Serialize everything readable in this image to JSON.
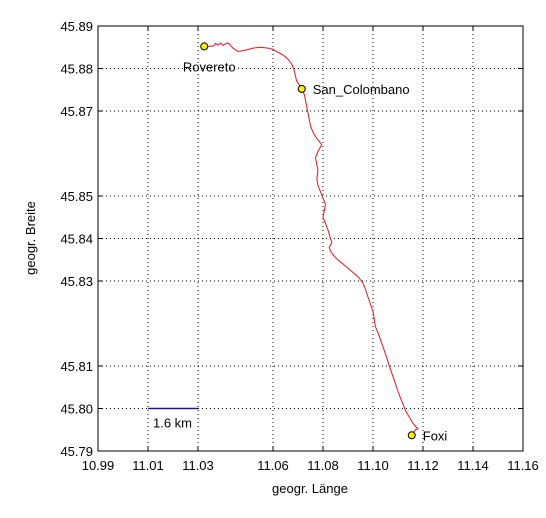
{
  "chart_data": {
    "type": "line",
    "xlabel": "geogr. Länge",
    "ylabel": "geogr. Breite",
    "xlim": [
      10.99,
      11.16
    ],
    "ylim": [
      45.79,
      45.89
    ],
    "grid": true,
    "x_ticks": [
      10.99,
      11.01,
      11.03,
      11.06,
      11.08,
      11.1,
      11.12,
      11.14,
      11.16
    ],
    "x_tick_labels": [
      "10.99",
      "11.01",
      "11.03",
      "11.06",
      "11.08",
      "11.10",
      "11.12",
      "11.14",
      "11.16"
    ],
    "y_ticks": [
      45.89,
      45.88,
      45.87,
      45.85,
      45.84,
      45.83,
      45.81,
      45.8,
      45.79
    ],
    "y_tick_labels": [
      "45.89",
      "45.88",
      "45.87",
      "45.85",
      "45.84",
      "45.83",
      "45.81",
      "45.80",
      "45.79"
    ],
    "colors": {
      "route": "#e8141e",
      "marker_fill": "#ffee00",
      "scale_bar": "#1a1a8c",
      "grid": "#000000"
    },
    "scale_bar": {
      "label": "1.6 km",
      "x_start": 11.01,
      "x_end": 11.03,
      "y": 45.8
    },
    "places": [
      {
        "name": "Rovereto",
        "x": 11.0325,
        "y": 45.8852,
        "label_pos": "below"
      },
      {
        "name": "San_Colombano",
        "x": 11.0715,
        "y": 45.8752,
        "label_pos": "right"
      },
      {
        "name": "Foxi",
        "x": 11.1155,
        "y": 45.7937,
        "label_pos": "right"
      }
    ],
    "series": [
      {
        "x": [
          11.0325,
          11.0345,
          11.0362,
          11.037,
          11.038,
          11.0392,
          11.04,
          11.041,
          11.042,
          11.044,
          11.046,
          11.049,
          11.052,
          11.055,
          11.058,
          11.06,
          11.062,
          11.064,
          11.066,
          11.0675,
          11.0685,
          11.069,
          11.0695,
          11.0705,
          11.0715,
          11.0725,
          11.073,
          11.0735,
          11.074,
          11.0745,
          11.075,
          11.076,
          11.077,
          11.078,
          11.079,
          11.0795,
          11.078,
          11.077,
          11.0775,
          11.078,
          11.0775,
          11.078,
          11.079,
          11.08,
          11.081,
          11.0805,
          11.08,
          11.081,
          11.082,
          11.083,
          11.0835,
          11.0825,
          11.083,
          11.085,
          11.088,
          11.091,
          11.094,
          11.096,
          11.097,
          11.098,
          11.099,
          11.1,
          11.1005,
          11.101,
          11.102,
          11.103,
          11.104,
          11.105,
          11.106,
          11.107,
          11.108,
          11.109,
          11.11,
          11.111,
          11.112,
          11.113,
          11.1145,
          11.116,
          11.1175,
          11.118,
          11.117,
          11.1155
        ],
        "y": [
          45.8852,
          45.8852,
          45.8853,
          45.8859,
          45.8855,
          45.886,
          45.8854,
          45.8858,
          45.886,
          45.8848,
          45.884,
          45.8843,
          45.8848,
          45.885,
          45.8848,
          45.8845,
          45.8838,
          45.8832,
          45.8822,
          45.881,
          45.8795,
          45.8782,
          45.877,
          45.8762,
          45.8752,
          45.874,
          45.8725,
          45.871,
          45.8695,
          45.868,
          45.8665,
          45.865,
          45.864,
          45.8632,
          45.8625,
          45.862,
          45.8605,
          45.859,
          45.8575,
          45.856,
          45.854,
          45.8525,
          45.851,
          45.8495,
          45.848,
          45.8465,
          45.845,
          45.8435,
          45.842,
          45.84,
          45.839,
          45.838,
          45.837,
          45.8355,
          45.834,
          45.8325,
          45.831,
          45.8295,
          45.828,
          45.8262,
          45.8245,
          45.8228,
          45.821,
          45.8192,
          45.8178,
          45.8162,
          45.8145,
          45.8128,
          45.811,
          45.8092,
          45.8075,
          45.8058,
          45.804,
          45.8025,
          45.801,
          45.7995,
          45.798,
          45.7965,
          45.7955,
          45.7952,
          45.795,
          45.7937
        ]
      }
    ]
  }
}
